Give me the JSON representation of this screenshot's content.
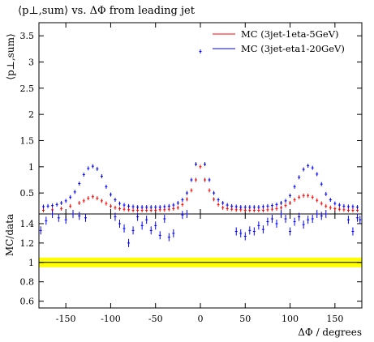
{
  "chart_data": {
    "type": "scatter",
    "title": "⟨p⊥,sum⟩ vs. ΔΦ from leading jet",
    "xlabel": "ΔΦ / degrees",
    "xlim": [
      -180,
      180
    ],
    "grid": false,
    "legend_position": "top-right",
    "x_ticks": [
      -150,
      -100,
      -50,
      0,
      50,
      100,
      150
    ],
    "main_panel": {
      "ylabel": "⟨p⊥,sum⟩",
      "ylim": [
        0.1,
        3.75
      ],
      "y_ticks": [
        0.5,
        1,
        1.5,
        2,
        2.5,
        3,
        3.5
      ],
      "series": [
        {
          "name": "MC (3jet-1eta-5GeV)",
          "color": "#ff0000",
          "x": [
            -175,
            -165,
            -155,
            -145,
            -135,
            -130,
            -125,
            -120,
            -115,
            -110,
            -105,
            -100,
            -95,
            -90,
            -85,
            -80,
            -75,
            -70,
            -65,
            -60,
            -55,
            -50,
            -45,
            -40,
            -35,
            -30,
            -25,
            -20,
            -15,
            -10,
            -5,
            0,
            5,
            10,
            15,
            20,
            25,
            30,
            35,
            40,
            45,
            50,
            55,
            60,
            65,
            70,
            75,
            80,
            85,
            90,
            95,
            100,
            105,
            110,
            115,
            120,
            125,
            130,
            135,
            140,
            145,
            150,
            155,
            160,
            165,
            170,
            175
          ],
          "y": [
            0.17,
            0.18,
            0.2,
            0.25,
            0.31,
            0.35,
            0.4,
            0.43,
            0.4,
            0.35,
            0.3,
            0.25,
            0.22,
            0.2,
            0.19,
            0.18,
            0.17,
            0.17,
            0.17,
            0.17,
            0.17,
            0.17,
            0.18,
            0.18,
            0.19,
            0.2,
            0.22,
            0.28,
            0.38,
            0.55,
            0.75,
            1.0,
            0.75,
            0.55,
            0.38,
            0.28,
            0.22,
            0.2,
            0.19,
            0.18,
            0.18,
            0.17,
            0.17,
            0.17,
            0.17,
            0.17,
            0.18,
            0.19,
            0.2,
            0.22,
            0.26,
            0.31,
            0.37,
            0.42,
            0.45,
            0.45,
            0.42,
            0.36,
            0.3,
            0.25,
            0.22,
            0.2,
            0.19,
            0.18,
            0.17,
            0.17,
            0.17
          ]
        },
        {
          "name": "MC (3jet-eta1-20GeV)",
          "color": "#0000ff",
          "x": [
            -175,
            -170,
            -165,
            -160,
            -155,
            -150,
            -145,
            -140,
            -135,
            -130,
            -125,
            -120,
            -115,
            -110,
            -105,
            -100,
            -95,
            -90,
            -85,
            -80,
            -75,
            -70,
            -65,
            -60,
            -55,
            -50,
            -45,
            -40,
            -35,
            -30,
            -25,
            -20,
            -15,
            -10,
            -5,
            0,
            5,
            10,
            15,
            20,
            25,
            30,
            35,
            40,
            45,
            50,
            55,
            60,
            65,
            70,
            75,
            80,
            85,
            90,
            95,
            100,
            105,
            110,
            115,
            120,
            125,
            130,
            135,
            140,
            145,
            150,
            155,
            160,
            165,
            170,
            175
          ],
          "y": [
            0.24,
            0.25,
            0.26,
            0.28,
            0.31,
            0.35,
            0.42,
            0.52,
            0.68,
            0.85,
            0.97,
            1.01,
            0.96,
            0.82,
            0.62,
            0.47,
            0.37,
            0.3,
            0.27,
            0.25,
            0.24,
            0.23,
            0.23,
            0.23,
            0.23,
            0.23,
            0.23,
            0.24,
            0.25,
            0.27,
            0.31,
            0.37,
            0.5,
            0.75,
            1.05,
            3.2,
            1.05,
            0.75,
            0.5,
            0.37,
            0.31,
            0.27,
            0.25,
            0.24,
            0.23,
            0.23,
            0.23,
            0.23,
            0.23,
            0.24,
            0.25,
            0.26,
            0.28,
            0.31,
            0.35,
            0.45,
            0.62,
            0.8,
            0.95,
            1.02,
            0.98,
            0.86,
            0.67,
            0.48,
            0.37,
            0.3,
            0.27,
            0.25,
            0.24,
            0.24,
            0.23
          ]
        }
      ]
    },
    "ratio_panel": {
      "ylabel": "MC/data",
      "ylim": [
        0.53,
        1.5
      ],
      "y_ticks": [
        0.6,
        0.8,
        1,
        1.2,
        1.4
      ],
      "reference_line": 1.0,
      "band_color": "#ffff00",
      "band_halfwidth": 0.05,
      "series": [
        {
          "name": "MC (3jet-eta1-20GeV)",
          "color": "#0000ff",
          "x": [
            -178,
            -172,
            -165,
            -158,
            -150,
            -142,
            -135,
            -128,
            -95,
            -90,
            -85,
            -80,
            -75,
            -70,
            -65,
            -60,
            -55,
            -50,
            -45,
            -40,
            -35,
            -30,
            -20,
            -15,
            40,
            45,
            50,
            55,
            60,
            65,
            70,
            75,
            80,
            85,
            90,
            95,
            100,
            105,
            110,
            115,
            120,
            125,
            130,
            135,
            140,
            165,
            170,
            175,
            178
          ],
          "y": [
            1.33,
            1.43,
            1.5,
            1.46,
            1.44,
            1.5,
            1.48,
            1.46,
            1.47,
            1.4,
            1.35,
            1.2,
            1.33,
            1.47,
            1.38,
            1.44,
            1.33,
            1.38,
            1.28,
            1.45,
            1.26,
            1.3,
            1.49,
            1.5,
            1.32,
            1.3,
            1.27,
            1.33,
            1.32,
            1.38,
            1.34,
            1.42,
            1.45,
            1.4,
            1.5,
            1.45,
            1.32,
            1.42,
            1.47,
            1.39,
            1.44,
            1.45,
            1.5,
            1.48,
            1.5,
            1.44,
            1.32,
            1.46,
            1.44
          ]
        }
      ]
    }
  }
}
